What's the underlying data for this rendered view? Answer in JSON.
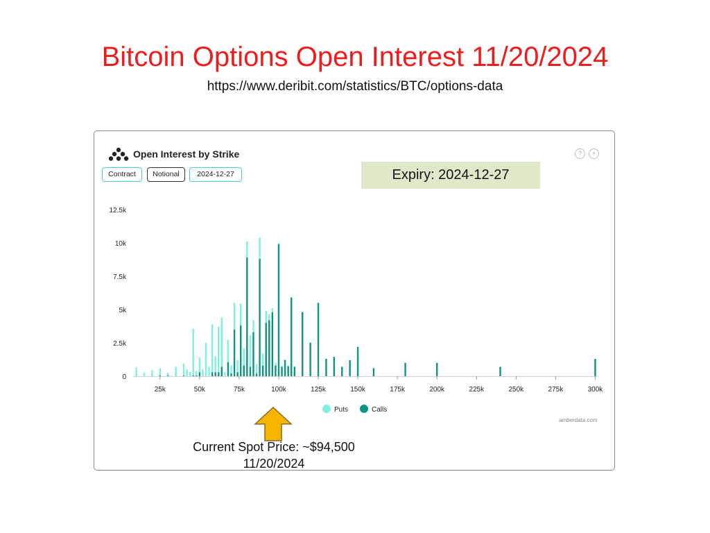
{
  "slide": {
    "title": "Bitcoin Options Open Interest 11/20/2024",
    "url": "https://www.deribit.com/statistics/BTC/options-data"
  },
  "widget": {
    "heading": "Open Interest by Strike",
    "buttons": [
      "Contract",
      "Notional",
      "2024-12-27"
    ],
    "active_button": "Contract",
    "watermark": "amberdata.com",
    "icons": [
      "help-icon",
      "expand-icon"
    ]
  },
  "annotations": {
    "expiry": "Expiry: 2024-12-27",
    "spot_line1": "Current Spot Price: ~$94,500",
    "spot_line2": "11/20/2024"
  },
  "colors": {
    "puts": "#7ff0e0",
    "calls": "#0e9380",
    "title": "#ee1c1c",
    "expiry_bg": "#dfe8c8",
    "arrow": "#f7b500"
  },
  "chart_data": {
    "type": "bar",
    "title": "Open Interest by Strike",
    "xlabel": "",
    "ylabel": "",
    "xlim": [
      8000,
      302000
    ],
    "ylim": [
      0,
      12500
    ],
    "x_ticks": [
      25000,
      50000,
      75000,
      100000,
      125000,
      150000,
      175000,
      200000,
      225000,
      250000,
      275000,
      300000
    ],
    "x_tick_labels": [
      "25k",
      "50k",
      "75k",
      "100k",
      "125k",
      "150k",
      "175k",
      "200k",
      "225k",
      "250k",
      "275k",
      "300k"
    ],
    "y_ticks": [
      0,
      2500,
      5000,
      7500,
      10000,
      12500
    ],
    "y_tick_labels": [
      "0",
      "2.5k",
      "5k",
      "7.5k",
      "10k",
      "12.5k"
    ],
    "grid": false,
    "legend": "bottom-center",
    "stacked": true,
    "series": [
      {
        "name": "Puts",
        "color": "#7ff0e0",
        "points": [
          [
            10000,
            650
          ],
          [
            15000,
            280
          ],
          [
            20000,
            450
          ],
          [
            25000,
            550
          ],
          [
            30000,
            200
          ],
          [
            35000,
            700
          ],
          [
            40000,
            900
          ],
          [
            42000,
            500
          ],
          [
            44000,
            320
          ],
          [
            46000,
            3500
          ],
          [
            48000,
            350
          ],
          [
            50000,
            1100
          ],
          [
            52000,
            500
          ],
          [
            54000,
            2500
          ],
          [
            56000,
            700
          ],
          [
            58000,
            3600
          ],
          [
            60000,
            1200
          ],
          [
            62000,
            3400
          ],
          [
            64000,
            3700
          ],
          [
            66000,
            300
          ],
          [
            68000,
            1650
          ],
          [
            70000,
            600
          ],
          [
            72000,
            2000
          ],
          [
            74000,
            900
          ],
          [
            76000,
            1650
          ],
          [
            78000,
            1300
          ],
          [
            80000,
            1200
          ],
          [
            82000,
            2400
          ],
          [
            84000,
            900
          ],
          [
            86000,
            700
          ],
          [
            88000,
            1600
          ],
          [
            90000,
            900
          ],
          [
            92000,
            900
          ],
          [
            94000,
            450
          ],
          [
            96000,
            300
          ],
          [
            98000,
            200
          ],
          [
            100000,
            100
          ],
          [
            102000,
            100
          ],
          [
            104000,
            50
          ],
          [
            106000,
            50
          ],
          [
            108000,
            50
          ],
          [
            110000,
            50
          ],
          [
            115000,
            50
          ],
          [
            120000,
            50
          ]
        ]
      },
      {
        "name": "Calls",
        "color": "#0e9380",
        "points": [
          [
            10000,
            0
          ],
          [
            15000,
            0
          ],
          [
            20000,
            0
          ],
          [
            25000,
            50
          ],
          [
            30000,
            50
          ],
          [
            35000,
            0
          ],
          [
            40000,
            50
          ],
          [
            42000,
            0
          ],
          [
            44000,
            0
          ],
          [
            46000,
            50
          ],
          [
            48000,
            50
          ],
          [
            50000,
            300
          ],
          [
            52000,
            0
          ],
          [
            54000,
            0
          ],
          [
            56000,
            0
          ],
          [
            58000,
            300
          ],
          [
            60000,
            300
          ],
          [
            62000,
            300
          ],
          [
            64000,
            700
          ],
          [
            66000,
            0
          ],
          [
            68000,
            1050
          ],
          [
            70000,
            200
          ],
          [
            72000,
            3500
          ],
          [
            74000,
            300
          ],
          [
            76000,
            3800
          ],
          [
            78000,
            800
          ],
          [
            80000,
            8900
          ],
          [
            82000,
            700
          ],
          [
            84000,
            3300
          ],
          [
            86000,
            200
          ],
          [
            88000,
            8800
          ],
          [
            90000,
            800
          ],
          [
            92000,
            4000
          ],
          [
            94000,
            4200
          ],
          [
            96000,
            4800
          ],
          [
            98000,
            800
          ],
          [
            100000,
            9900
          ],
          [
            102000,
            700
          ],
          [
            104000,
            1200
          ],
          [
            106000,
            750
          ],
          [
            108000,
            5900
          ],
          [
            110000,
            700
          ],
          [
            115000,
            4800
          ],
          [
            120000,
            2500
          ],
          [
            125000,
            5500
          ],
          [
            130000,
            1300
          ],
          [
            135000,
            1450
          ],
          [
            140000,
            700
          ],
          [
            145000,
            1200
          ],
          [
            150000,
            2200
          ],
          [
            160000,
            600
          ],
          [
            180000,
            1000
          ],
          [
            200000,
            1000
          ],
          [
            240000,
            700
          ],
          [
            300000,
            1300
          ]
        ]
      }
    ]
  }
}
